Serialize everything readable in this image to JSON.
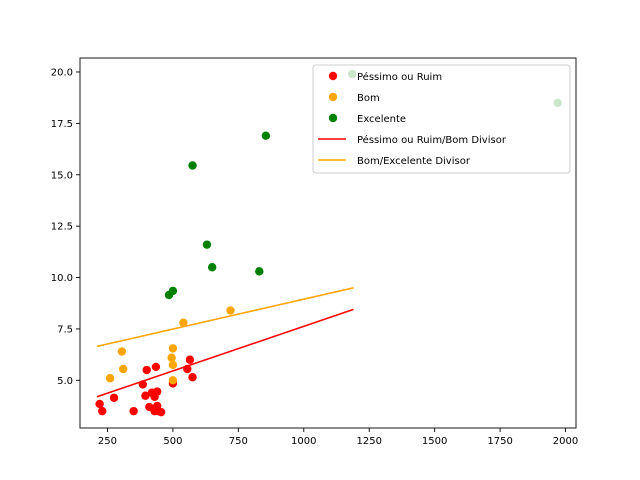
{
  "chart_data": {
    "type": "scatter",
    "title": "",
    "xlabel": "",
    "ylabel": "",
    "xlim": [
      145,
      2040
    ],
    "ylim": [
      2.68,
      20.68
    ],
    "xticks": [
      250,
      500,
      750,
      1000,
      1250,
      1500,
      1750,
      2000
    ],
    "xtick_labels": [
      "250",
      "500",
      "750",
      "1000",
      "1250",
      "1500",
      "1750",
      "2000"
    ],
    "yticks": [
      5.0,
      7.5,
      10.0,
      12.5,
      15.0,
      17.5,
      20.0
    ],
    "ytick_labels": [
      "5.0",
      "7.5",
      "10.0",
      "12.5",
      "15.0",
      "17.5",
      "20.0"
    ],
    "grid": false,
    "legend_position": "top-right",
    "series": [
      {
        "name": "Péssimo ou Ruim",
        "kind": "scatter",
        "color": "#ff0000",
        "points": [
          [
            220,
            3.85
          ],
          [
            230,
            3.5
          ],
          [
            275,
            4.15
          ],
          [
            350,
            3.5
          ],
          [
            385,
            4.8
          ],
          [
            395,
            4.25
          ],
          [
            400,
            5.5
          ],
          [
            410,
            3.7
          ],
          [
            420,
            4.4
          ],
          [
            430,
            4.2
          ],
          [
            430,
            3.5
          ],
          [
            435,
            5.65
          ],
          [
            440,
            4.45
          ],
          [
            440,
            3.75
          ],
          [
            445,
            3.5
          ],
          [
            455,
            3.45
          ],
          [
            500,
            4.85
          ],
          [
            555,
            5.55
          ],
          [
            565,
            6.0
          ],
          [
            575,
            5.15
          ]
        ]
      },
      {
        "name": "Bom",
        "kind": "scatter",
        "color": "#ffa500",
        "points": [
          [
            260,
            5.1
          ],
          [
            305,
            6.4
          ],
          [
            310,
            5.55
          ],
          [
            495,
            6.1
          ],
          [
            500,
            6.55
          ],
          [
            500,
            5.75
          ],
          [
            500,
            5.0
          ],
          [
            540,
            7.8
          ],
          [
            720,
            8.4
          ]
        ]
      },
      {
        "name": "Excelente",
        "kind": "scatter",
        "color": "#008000",
        "points": [
          [
            485,
            9.15
          ],
          [
            500,
            9.35
          ],
          [
            575,
            15.45
          ],
          [
            630,
            11.6
          ],
          [
            650,
            10.5
          ],
          [
            830,
            10.3
          ],
          [
            855,
            16.9
          ],
          [
            1185,
            19.9
          ],
          [
            1970,
            18.5
          ]
        ]
      },
      {
        "name": "Péssimo ou Ruim/Bom Divisor",
        "kind": "line",
        "color": "#ff0000",
        "x": [
          210,
          1190
        ],
        "y": [
          4.2,
          8.45
        ]
      },
      {
        "name": "Bom/Excelente Divisor",
        "kind": "line",
        "color": "#ffa500",
        "x": [
          210,
          1190
        ],
        "y": [
          6.65,
          9.5
        ]
      }
    ]
  }
}
